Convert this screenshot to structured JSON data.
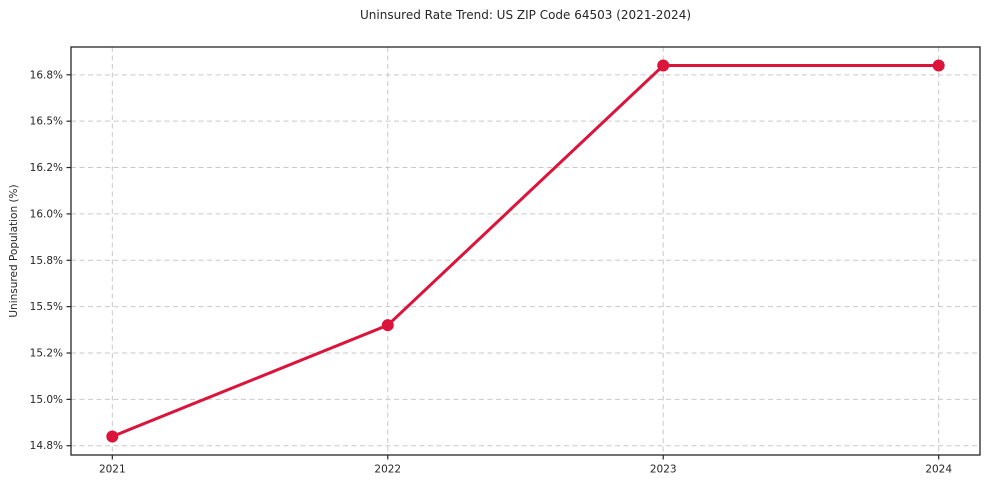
{
  "chart_data": {
    "type": "line",
    "title": "Uninsured Rate Trend: US ZIP Code 64503 (2021-2024)",
    "xlabel": "",
    "ylabel": "Uninsured Population (%)",
    "x": [
      2021,
      2022,
      2023,
      2024
    ],
    "x_tick_labels": [
      "2021",
      "2022",
      "2023",
      "2024"
    ],
    "series": [
      {
        "values": [
          14.8,
          15.4,
          16.8,
          16.8
        ],
        "color": "#dc143c",
        "marker": "circle",
        "line_width": 3,
        "marker_radius": 6
      }
    ],
    "ylim": [
      14.7,
      16.9
    ],
    "y_ticks": [
      {
        "value": 14.75,
        "label": "14.8%"
      },
      {
        "value": 15.0,
        "label": "15.0%"
      },
      {
        "value": 15.25,
        "label": "15.2%"
      },
      {
        "value": 15.5,
        "label": "15.5%"
      },
      {
        "value": 15.75,
        "label": "15.8%"
      },
      {
        "value": 16.0,
        "label": "16.0%"
      },
      {
        "value": 16.25,
        "label": "16.2%"
      },
      {
        "value": 16.5,
        "label": "16.5%"
      },
      {
        "value": 16.75,
        "label": "16.8%"
      }
    ],
    "grid": true,
    "grid_style": "dashed",
    "grid_color": "#c9c9c9",
    "axis_color": "#262626",
    "legend": "none"
  }
}
